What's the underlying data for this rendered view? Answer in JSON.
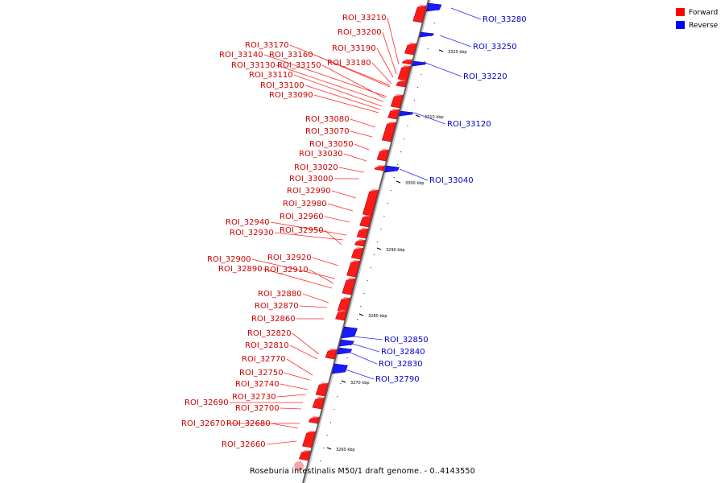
{
  "caption": "Roseburia intestinalis M50/1 draft genome. - 0..4143550",
  "legend": [
    {
      "label": "Forward",
      "color": "#ff0000"
    },
    {
      "label": "Reverse",
      "color": "#0000ff"
    }
  ],
  "ticks": [
    "3260 kbp",
    "3270 kbp",
    "3280 kbp",
    "3290 kbp",
    "3300 kbp",
    "3310 kbp",
    "3320 kbp"
  ],
  "forward_labels": [
    "ROI_33210",
    "ROI_33200",
    "ROI_33190",
    "ROI_33180",
    "ROI_33170",
    "ROI_33160",
    "ROI_33140",
    "ROI_33150",
    "ROI_33130",
    "ROI_33110",
    "ROI_33100",
    "ROI_33090",
    "ROI_33080",
    "ROI_33070",
    "ROI_33050",
    "ROI_33030",
    "ROI_33020",
    "ROI_33000",
    "ROI_32990",
    "ROI_32980",
    "ROI_32960",
    "ROI_32940",
    "ROI_32930",
    "ROI_32950",
    "ROI_32920",
    "ROI_32900",
    "ROI_32910",
    "ROI_32890",
    "ROI_32880",
    "ROI_32870",
    "ROI_32860",
    "ROI_32820",
    "ROI_32810",
    "ROI_32770",
    "ROI_32750",
    "ROI_32740",
    "ROI_32730",
    "ROI_32690",
    "ROI_32700",
    "ROI_32670",
    "ROI_32680",
    "ROI_32660"
  ],
  "reverse_labels": [
    "ROI_33280",
    "ROI_33250",
    "ROI_33220",
    "ROI_33120",
    "ROI_33040",
    "ROI_32850",
    "ROI_32840",
    "ROI_32830",
    "ROI_32790"
  ]
}
